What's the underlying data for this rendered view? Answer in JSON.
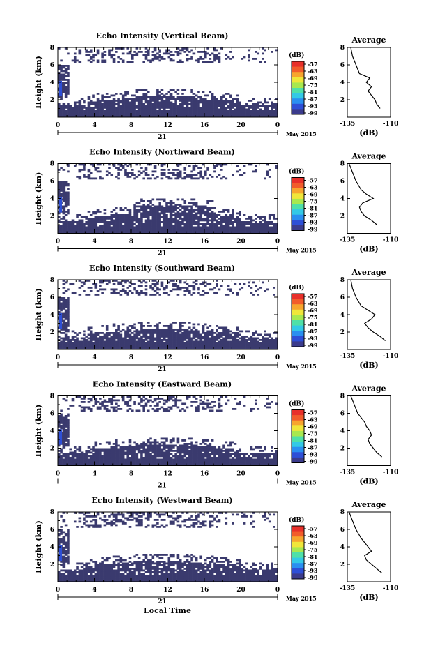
{
  "xlabel": "Local Time",
  "colors": {
    "echo_fill": "#3a3a6e",
    "scale": [
      "#3b3b8c",
      "#2e4fd6",
      "#2a8ff0",
      "#33c9e6",
      "#4fe0a8",
      "#a8e84f",
      "#f0e63a",
      "#f7a52e",
      "#f25c2b",
      "#e8302a"
    ]
  },
  "chart_data": [
    {
      "type": "heatmap",
      "title": "Echo Intensity (Vertical Beam)",
      "ylabel": "Height (km)",
      "y_ticks": [
        "2",
        "4",
        "6",
        "8"
      ],
      "x_ticks": [
        "0",
        "4",
        "8",
        "12",
        "16",
        "20",
        "0"
      ],
      "date_label": "21",
      "month_label": "May 2015",
      "ylim": [
        0,
        8
      ],
      "xlim": [
        0,
        24
      ],
      "colorbar": {
        "unit": "(dB)",
        "ticks": [
          "-57",
          "-63",
          "-69",
          "-75",
          "-81",
          "-87",
          "-93",
          "-99"
        ]
      },
      "profile": {
        "title": "Average",
        "x_ticks": [
          "-135",
          "-110"
        ],
        "xlabel": "(dB)",
        "y_ticks": [
          "2",
          "4",
          "6",
          "8"
        ],
        "xlim": [
          -135,
          -110
        ],
        "ylim": [
          0,
          8
        ],
        "points": [
          [
            -116,
            1
          ],
          [
            -118,
            1.5
          ],
          [
            -119,
            2
          ],
          [
            -121,
            2.5
          ],
          [
            -123,
            3
          ],
          [
            -121,
            3.5
          ],
          [
            -124,
            4
          ],
          [
            -122,
            4.5
          ],
          [
            -128,
            5
          ],
          [
            -130,
            6
          ],
          [
            -132,
            7
          ],
          [
            -133,
            8
          ]
        ]
      }
    },
    {
      "type": "heatmap",
      "title": "Echo Intensity (Northward Beam)",
      "ylabel": "Height (km)",
      "y_ticks": [
        "2",
        "4",
        "6",
        "8"
      ],
      "x_ticks": [
        "0",
        "4",
        "8",
        "12",
        "16",
        "20",
        "0"
      ],
      "date_label": "21",
      "month_label": "May 2015",
      "ylim": [
        0,
        8
      ],
      "xlim": [
        0,
        24
      ],
      "colorbar": {
        "unit": "(dB)",
        "ticks": [
          "-57",
          "-63",
          "-69",
          "-75",
          "-81",
          "-87",
          "-93",
          "-99"
        ]
      },
      "profile": {
        "title": "Average",
        "x_ticks": [
          "-135",
          "-110"
        ],
        "xlabel": "(dB)",
        "y_ticks": [
          "2",
          "4",
          "6",
          "8"
        ],
        "xlim": [
          -135,
          -110
        ],
        "ylim": [
          0,
          8
        ],
        "points": [
          [
            -118,
            1
          ],
          [
            -121,
            1.5
          ],
          [
            -125,
            2
          ],
          [
            -127,
            2.5
          ],
          [
            -128,
            3
          ],
          [
            -126,
            3.5
          ],
          [
            -120,
            4
          ],
          [
            -124,
            4.5
          ],
          [
            -127,
            5
          ],
          [
            -130,
            6
          ],
          [
            -132,
            7
          ],
          [
            -134,
            8
          ]
        ]
      }
    },
    {
      "type": "heatmap",
      "title": "Echo Intensity (Southward Beam)",
      "ylabel": "Height (km)",
      "y_ticks": [
        "2",
        "4",
        "6",
        "8"
      ],
      "x_ticks": [
        "0",
        "4",
        "8",
        "12",
        "16",
        "20",
        "0"
      ],
      "date_label": "21",
      "month_label": "May 2015",
      "ylim": [
        0,
        8
      ],
      "xlim": [
        0,
        24
      ],
      "colorbar": {
        "unit": "(dB)",
        "ticks": [
          "-57",
          "-63",
          "-69",
          "-75",
          "-81",
          "-87",
          "-93",
          "-99"
        ]
      },
      "profile": {
        "title": "Average",
        "x_ticks": [
          "-135",
          "-110"
        ],
        "xlabel": "(dB)",
        "y_ticks": [
          "2",
          "4",
          "6",
          "8"
        ],
        "xlim": [
          -135,
          -110
        ],
        "ylim": [
          0,
          8
        ],
        "points": [
          [
            -113,
            1
          ],
          [
            -116,
            1.5
          ],
          [
            -120,
            2
          ],
          [
            -123,
            2.5
          ],
          [
            -125,
            3
          ],
          [
            -121,
            3.5
          ],
          [
            -119,
            4
          ],
          [
            -123,
            4.5
          ],
          [
            -127,
            5
          ],
          [
            -130,
            6
          ],
          [
            -132,
            7
          ],
          [
            -133,
            8
          ]
        ]
      }
    },
    {
      "type": "heatmap",
      "title": "Echo Intensity (Eastward Beam)",
      "ylabel": "Height (km)",
      "y_ticks": [
        "2",
        "4",
        "6",
        "8"
      ],
      "x_ticks": [
        "0",
        "4",
        "8",
        "12",
        "16",
        "20",
        "0"
      ],
      "date_label": "21",
      "month_label": "May 2015",
      "ylim": [
        0,
        8
      ],
      "xlim": [
        0,
        24
      ],
      "colorbar": {
        "unit": "(dB)",
        "ticks": [
          "-57",
          "-63",
          "-69",
          "-75",
          "-81",
          "-87",
          "-93",
          "-99"
        ]
      },
      "profile": {
        "title": "Average",
        "x_ticks": [
          "-135",
          "-110"
        ],
        "xlabel": "(dB)",
        "y_ticks": [
          "2",
          "4",
          "6",
          "8"
        ],
        "xlim": [
          -135,
          -110
        ],
        "ylim": [
          0,
          8
        ],
        "points": [
          [
            -115,
            1
          ],
          [
            -118,
            1.5
          ],
          [
            -120,
            2
          ],
          [
            -122,
            2.5
          ],
          [
            -123,
            3
          ],
          [
            -121,
            3.5
          ],
          [
            -122,
            4
          ],
          [
            -124,
            4.5
          ],
          [
            -125,
            5
          ],
          [
            -129,
            6
          ],
          [
            -131,
            7
          ],
          [
            -133,
            8
          ]
        ]
      }
    },
    {
      "type": "heatmap",
      "title": "Echo Intensity (Westward Beam)",
      "ylabel": "Height (km)",
      "y_ticks": [
        "2",
        "4",
        "6",
        "8"
      ],
      "x_ticks": [
        "0",
        "4",
        "8",
        "12",
        "16",
        "20",
        "0"
      ],
      "date_label": "21",
      "month_label": "May 2015",
      "ylim": [
        0,
        8
      ],
      "xlim": [
        0,
        24
      ],
      "colorbar": {
        "unit": "(dB)",
        "ticks": [
          "-57",
          "-63",
          "-69",
          "-75",
          "-81",
          "-87",
          "-93",
          "-99"
        ]
      },
      "profile": {
        "title": "Average",
        "x_ticks": [
          "-135",
          "-110"
        ],
        "xlabel": "(dB)",
        "y_ticks": [
          "2",
          "4",
          "6",
          "8"
        ],
        "xlim": [
          -135,
          -110
        ],
        "ylim": [
          0,
          8
        ],
        "points": [
          [
            -115,
            1
          ],
          [
            -118,
            1.5
          ],
          [
            -121,
            2
          ],
          [
            -124,
            2.5
          ],
          [
            -125,
            3
          ],
          [
            -121,
            3.5
          ],
          [
            -123,
            4
          ],
          [
            -125,
            4.5
          ],
          [
            -127,
            5
          ],
          [
            -130,
            6
          ],
          [
            -132,
            7
          ],
          [
            -134,
            8
          ]
        ]
      }
    }
  ]
}
